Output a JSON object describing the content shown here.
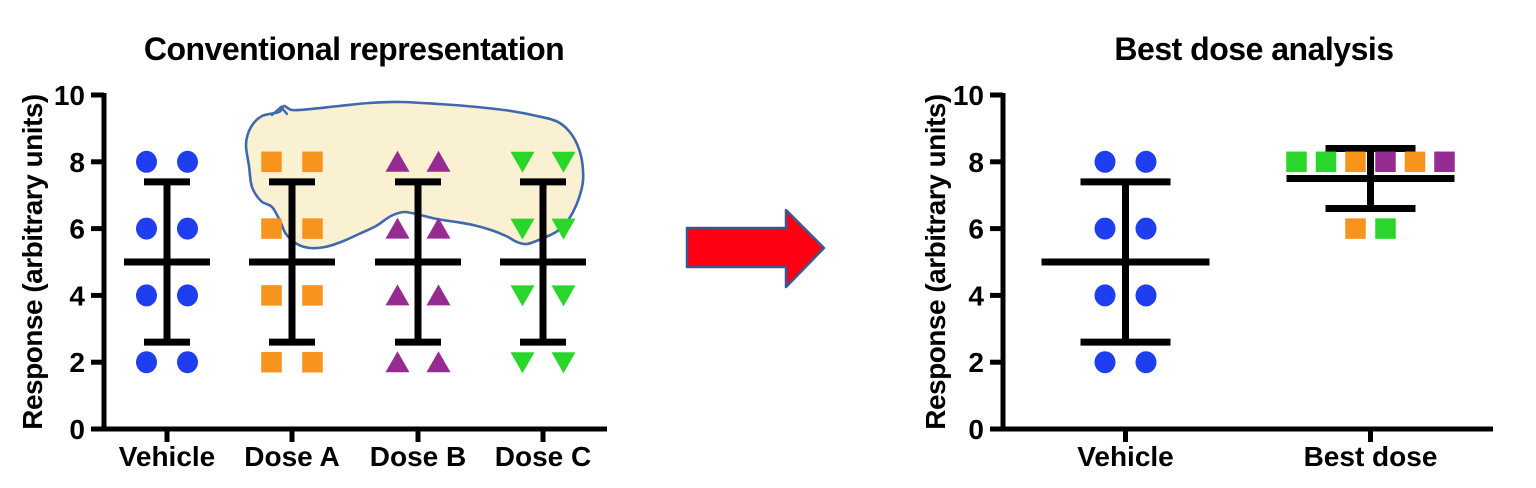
{
  "figure": {
    "left_title": "Conventional representation",
    "right_title": "Best dose analysis",
    "y_axis_label": "Response (arbitrary units)"
  },
  "colors": {
    "vehicle_blue": "#1E3EF0",
    "dose_a_orange": "#F7941E",
    "dose_b_purple": "#962B92",
    "dose_c_green": "#2BD62B",
    "arrow_red": "#FE0012",
    "arrow_outline": "#3A5794",
    "highlight_fill": "#FAF0D2",
    "highlight_stroke": "#4068AE",
    "axis_black": "#000000"
  },
  "arrow": {
    "direction": "right",
    "fill": "#FE0012",
    "outline": "#3A5794"
  },
  "chart_data": [
    {
      "type": "scatter",
      "title": "Conventional representation",
      "ylabel": "Response (arbitrary units)",
      "xlabel": "",
      "ylim": [
        0,
        10
      ],
      "yticks": [
        0,
        2,
        4,
        6,
        8,
        10
      ],
      "grid": false,
      "legend": "none",
      "categories": [
        "Vehicle",
        "Dose A",
        "Dose B",
        "Dose C"
      ],
      "series": [
        {
          "name": "Vehicle",
          "marker": "circle",
          "color": "#1E3EF0",
          "values": [
            8,
            8,
            6,
            6,
            4,
            4,
            2,
            2
          ],
          "mean": 5,
          "err_low": 2.6,
          "err_high": 7.4
        },
        {
          "name": "Dose A",
          "marker": "square",
          "color": "#F7941E",
          "values": [
            8,
            8,
            6,
            6,
            4,
            4,
            2,
            2
          ],
          "mean": 5,
          "err_low": 2.6,
          "err_high": 7.4
        },
        {
          "name": "Dose B",
          "marker": "triangle-up",
          "color": "#962B92",
          "values": [
            8,
            8,
            6,
            6,
            4,
            4,
            2,
            2
          ],
          "mean": 5,
          "err_low": 2.6,
          "err_high": 7.4
        },
        {
          "name": "Dose C",
          "marker": "triangle-down",
          "color": "#2BD62B",
          "values": [
            8,
            8,
            6,
            6,
            4,
            4,
            2,
            2
          ],
          "mean": 5,
          "err_low": 2.6,
          "err_high": 7.4
        }
      ],
      "annotation": {
        "type": "freehand-highlight",
        "covers": "upper data points of Dose A, Dose B and Dose C",
        "fill": "#FAF0D2",
        "stroke": "#4068AE"
      }
    },
    {
      "type": "scatter",
      "title": "Best dose analysis",
      "ylabel": "Response (arbitrary units)",
      "xlabel": "",
      "ylim": [
        0,
        10
      ],
      "yticks": [
        0,
        2,
        4,
        6,
        8,
        10
      ],
      "grid": false,
      "legend": "none",
      "categories": [
        "Vehicle",
        "Best dose"
      ],
      "series": [
        {
          "name": "Vehicle",
          "marker": "circle",
          "color": "#1E3EF0",
          "values": [
            8,
            8,
            6,
            6,
            4,
            4,
            2,
            2
          ],
          "mean": 5,
          "err_low": 2.6,
          "err_high": 7.4
        },
        {
          "name": "Best dose",
          "marker": "square",
          "color": "#2BD62B",
          "values": [
            8,
            8,
            8,
            8,
            8,
            8,
            6,
            6
          ],
          "point_colors": [
            "#2BD62B",
            "#2BD62B",
            "#F7941E",
            "#962B92",
            "#F7941E",
            "#962B92",
            "#F7941E",
            "#2BD62B"
          ],
          "mean": 7.5,
          "err_low": 6.6,
          "err_high": 8.4
        }
      ]
    }
  ]
}
